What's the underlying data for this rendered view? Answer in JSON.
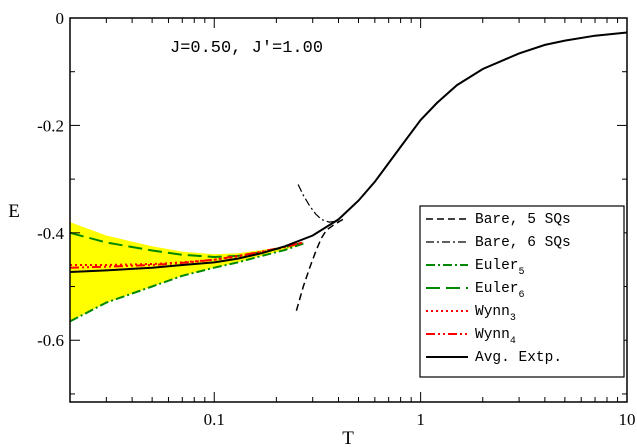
{
  "chart_data": {
    "type": "line",
    "xscale": "log",
    "xlim": [
      0.02,
      10
    ],
    "ylim": [
      -0.715,
      0.0
    ],
    "xlabel": "T",
    "ylabel": "E",
    "xticks": [
      0.1,
      1,
      10
    ],
    "xtick_labels": [
      "0.1",
      "1",
      "10"
    ],
    "yticks": [
      0,
      -0.2,
      -0.4,
      -0.6
    ],
    "ytick_labels": [
      "0",
      "-0.2",
      "-0.4",
      "-0.6"
    ],
    "annotation": "J=0.50, J'=1.00",
    "grid": false,
    "legend_position": "bottom-right",
    "band": {
      "color": "#ffff00",
      "x": [
        0.02,
        0.03,
        0.05,
        0.07,
        0.1,
        0.13,
        0.17,
        0.22,
        0.27
      ],
      "upper": [
        -0.38,
        -0.405,
        -0.425,
        -0.435,
        -0.44,
        -0.438,
        -0.432,
        -0.425,
        -0.418
      ],
      "lower": [
        -0.565,
        -0.53,
        -0.5,
        -0.48,
        -0.465,
        -0.455,
        -0.443,
        -0.432,
        -0.42
      ]
    },
    "series": [
      {
        "name": "Bare, 5 SQs",
        "name_sub": "",
        "color": "#000000",
        "dash": "7,4",
        "width": 1.5,
        "x": [
          0.25,
          0.27,
          0.29,
          0.31,
          0.33,
          0.35,
          0.38,
          0.42
        ],
        "y": [
          -0.545,
          -0.5,
          -0.465,
          -0.435,
          -0.41,
          -0.395,
          -0.385,
          -0.375
        ]
      },
      {
        "name": "Bare, 6 SQs",
        "name_sub": "",
        "color": "#000000",
        "dash": "8,3,2,3",
        "width": 1.2,
        "x": [
          0.255,
          0.27,
          0.29,
          0.31,
          0.33,
          0.36,
          0.4
        ],
        "y": [
          -0.31,
          -0.33,
          -0.35,
          -0.365,
          -0.375,
          -0.38,
          -0.378
        ]
      },
      {
        "name": "Euler",
        "name_sub": "5",
        "color": "#008800",
        "dash": "9,3,2,3",
        "width": 2,
        "x": [
          0.02,
          0.03,
          0.05,
          0.07,
          0.1,
          0.13,
          0.17,
          0.22,
          0.27
        ],
        "y": [
          -0.565,
          -0.53,
          -0.5,
          -0.48,
          -0.465,
          -0.455,
          -0.443,
          -0.432,
          -0.42
        ]
      },
      {
        "name": "Euler",
        "name_sub": "6",
        "color": "#008800",
        "dash": "14,6",
        "width": 2,
        "x": [
          0.02,
          0.03,
          0.05,
          0.07,
          0.1,
          0.13,
          0.17,
          0.22,
          0.27
        ],
        "y": [
          -0.4,
          -0.418,
          -0.433,
          -0.441,
          -0.445,
          -0.443,
          -0.436,
          -0.427,
          -0.418
        ]
      },
      {
        "name": "Wynn",
        "name_sub": "3",
        "color": "#ff0000",
        "dash": "2,3",
        "width": 2,
        "x": [
          0.02,
          0.03,
          0.05,
          0.07,
          0.1,
          0.13,
          0.17,
          0.22,
          0.27
        ],
        "y": [
          -0.46,
          -0.46,
          -0.458,
          -0.455,
          -0.45,
          -0.444,
          -0.436,
          -0.427,
          -0.418
        ]
      },
      {
        "name": "Wynn",
        "name_sub": "4",
        "color": "#ff0000",
        "dash": "9,3,2,3,2,3",
        "width": 2,
        "x": [
          0.02,
          0.03,
          0.05,
          0.07,
          0.1,
          0.13,
          0.17,
          0.22,
          0.27
        ],
        "y": [
          -0.465,
          -0.463,
          -0.46,
          -0.456,
          -0.45,
          -0.443,
          -0.435,
          -0.426,
          -0.418
        ]
      },
      {
        "name": "Avg. Extp.",
        "name_sub": "",
        "color": "#000000",
        "dash": "",
        "width": 2,
        "x": [
          0.02,
          0.03,
          0.05,
          0.07,
          0.1,
          0.13,
          0.17,
          0.22,
          0.3,
          0.4,
          0.5,
          0.6,
          0.7,
          0.8,
          1.0,
          1.2,
          1.5,
          2.0,
          3.0,
          4.0,
          5.0,
          7.0,
          10.0
        ],
        "y": [
          -0.473,
          -0.47,
          -0.465,
          -0.46,
          -0.455,
          -0.448,
          -0.438,
          -0.425,
          -0.405,
          -0.375,
          -0.34,
          -0.305,
          -0.27,
          -0.24,
          -0.19,
          -0.158,
          -0.125,
          -0.095,
          -0.066,
          -0.05,
          -0.042,
          -0.033,
          -0.027
        ]
      }
    ]
  }
}
